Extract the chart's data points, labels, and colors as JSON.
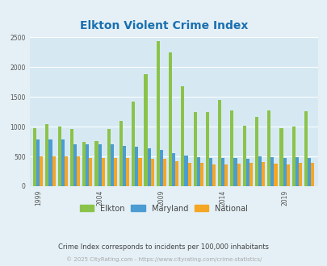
{
  "title": "Elkton Violent Crime Index",
  "subtitle": "Crime Index corresponds to incidents per 100,000 inhabitants",
  "footer": "© 2025 CityRating.com - https://www.cityrating.com/crime-statistics/",
  "years": [
    1999,
    2000,
    2001,
    2002,
    2003,
    2004,
    2005,
    2006,
    2007,
    2008,
    2009,
    2010,
    2011,
    2012,
    2013,
    2014,
    2015,
    2016,
    2017,
    2018,
    2019,
    2020,
    2021
  ],
  "elkton": [
    980,
    1040,
    1000,
    960,
    750,
    760,
    960,
    1100,
    1420,
    1880,
    2430,
    2240,
    1680,
    1250,
    1250,
    1450,
    1270,
    1010,
    1160,
    1270,
    980,
    1000,
    1260
  ],
  "maryland": [
    790,
    790,
    790,
    710,
    700,
    700,
    710,
    680,
    660,
    640,
    610,
    550,
    510,
    490,
    480,
    470,
    470,
    460,
    500,
    490,
    470,
    490,
    480
  ],
  "national": [
    500,
    500,
    500,
    500,
    475,
    475,
    475,
    475,
    475,
    460,
    460,
    420,
    390,
    390,
    370,
    365,
    375,
    390,
    400,
    380,
    370,
    390,
    395
  ],
  "elkton_color": "#8bc34a",
  "maryland_color": "#4b9cd3",
  "national_color": "#f5a623",
  "bg_color": "#e4f0f6",
  "plot_bg": "#d6e9f3",
  "ylim": [
    0,
    2500
  ],
  "yticks": [
    0,
    500,
    1000,
    1500,
    2000,
    2500
  ],
  "xtick_labels": [
    "1999",
    "2004",
    "2009",
    "2014",
    "2019"
  ],
  "xtick_positions": [
    1999,
    2004,
    2009,
    2014,
    2019
  ],
  "title_color": "#1a6faf",
  "subtitle_color": "#444444",
  "footer_color": "#aaaaaa",
  "legend_labels": [
    "Elkton",
    "Maryland",
    "National"
  ],
  "bar_width": 0.27
}
